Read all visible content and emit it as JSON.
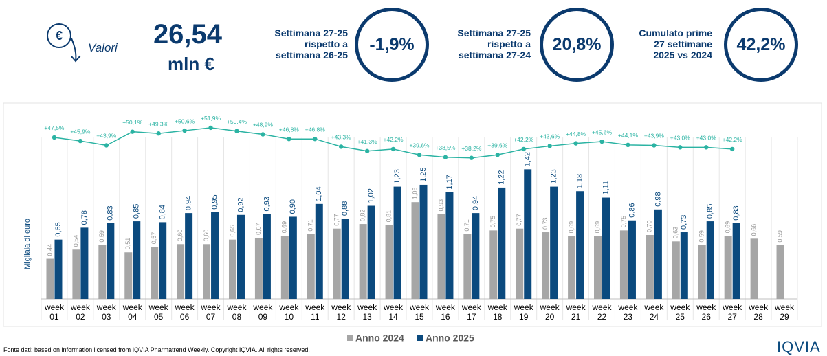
{
  "header": {
    "icon_label": "Valori",
    "total": "26,54",
    "total_unit": "mln €",
    "kpis": [
      {
        "label": "Settimana 27-25 rispetto a settimana 26-25",
        "value": "-1,9%"
      },
      {
        "label": "Settimana 27-25 rispetto a settimana 27-24",
        "value": "20,8%"
      },
      {
        "label": "Cumulato prime 27 settimane 2025 vs 2024",
        "value": "42,2%"
      }
    ]
  },
  "chart_data": {
    "type": "bar",
    "y_label": "Migliaia di euro",
    "categories": [
      "week 01",
      "week 02",
      "week 03",
      "week 04",
      "week 05",
      "week 06",
      "week 07",
      "week 08",
      "week 09",
      "week 10",
      "week 11",
      "week 12",
      "week 13",
      "week 14",
      "week 15",
      "week 16",
      "week 17",
      "week 18",
      "week 19",
      "week 20",
      "week 21",
      "week 22",
      "week 23",
      "week 24",
      "week 25",
      "week 26",
      "week 27",
      "week 28",
      "week 29"
    ],
    "ylim": [
      0,
      2.07
    ],
    "y2lim": [
      -26,
      60
    ],
    "series": [
      {
        "name": "Anno 2024",
        "color": "#a6a6a6",
        "values": [
          0.44,
          0.54,
          0.59,
          0.51,
          0.57,
          0.6,
          0.6,
          0.65,
          0.67,
          0.69,
          0.71,
          0.77,
          0.82,
          0.81,
          1.06,
          0.93,
          0.71,
          0.75,
          0.77,
          0.73,
          0.69,
          0.69,
          0.75,
          0.7,
          0.63,
          0.59,
          0.69,
          0.66,
          0.59
        ],
        "value_labels": [
          "0,44",
          "0,54",
          "0,59",
          "0,51",
          "0,57",
          "0,60",
          "0,60",
          "0,65",
          "0,67",
          "0,69",
          "0,71",
          "0,77",
          "0,82",
          "0,81",
          "1,06",
          "0,93",
          "0,71",
          "0,75",
          "0,77",
          "0,73",
          "0,69",
          "0,69",
          "0,75",
          "0,70",
          "0,63",
          "0,59",
          "0,69",
          "0,66",
          "0,59"
        ]
      },
      {
        "name": "Anno 2025",
        "color": "#0b4a7e",
        "values": [
          0.65,
          0.78,
          0.83,
          0.85,
          0.84,
          0.94,
          0.95,
          0.92,
          0.93,
          0.9,
          1.04,
          0.88,
          1.02,
          1.23,
          1.25,
          1.17,
          0.94,
          1.22,
          1.42,
          1.23,
          1.18,
          1.11,
          0.86,
          0.98,
          0.73,
          0.85,
          0.83,
          null,
          null
        ],
        "value_labels": [
          "0,65",
          "0,78",
          "0,83",
          "0,85",
          "0,84",
          "0,94",
          "0,95",
          "0,92",
          "0,93",
          "0,90",
          "1,04",
          "0,88",
          "1,02",
          "1,23",
          "1,25",
          "1,17",
          "0,94",
          "1,22",
          "1,42",
          "1,23",
          "1,18",
          "1,11",
          "0,86",
          "0,98",
          "0,73",
          "0,85",
          "0,83",
          null,
          null
        ]
      },
      {
        "type": "line",
        "axis": "y2",
        "color": "#2bb3a3",
        "values": [
          47.5,
          45.9,
          43.9,
          50.1,
          49.3,
          50.6,
          51.9,
          50.4,
          48.9,
          46.8,
          46.8,
          43.3,
          41.3,
          42.2,
          39.6,
          38.5,
          38.2,
          39.6,
          42.2,
          43.6,
          44.8,
          45.6,
          44.1,
          43.9,
          43.0,
          43.0,
          42.2,
          null,
          null
        ],
        "value_labels": [
          "+47,5%",
          "+45,9%",
          "+43,9%",
          "+50,1%",
          "+49,3%",
          "+50,6%",
          "+51,9%",
          "+50,4%",
          "+48,9%",
          "+46,8%",
          "+46,8%",
          "+43,3%",
          "+41,3%",
          "+42,2%",
          "+39,6%",
          "+38,5%",
          "+38,2%",
          "+39,6%",
          "+42,2%",
          "+43,6%",
          "+44,8%",
          "+45,6%",
          "+44,1%",
          "+43,9%",
          "+43,0%",
          "+43,0%",
          "+42,2%",
          null,
          null
        ]
      }
    ]
  },
  "footer": {
    "source": "Fonte dati: based on information licensed from IQVIA Pharmatrend Weekly. Copyright IQVIA. All rights reserved.",
    "logo": "IQVIA"
  }
}
